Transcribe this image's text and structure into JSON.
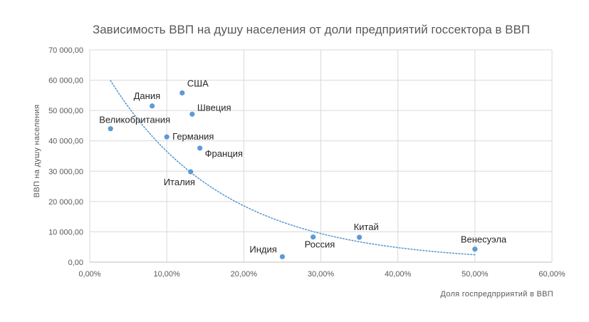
{
  "chart_data": {
    "type": "scatter",
    "title": "Зависимость ВВП на душу населения от доли предприятий госсектора в ВВП",
    "xlabel": "Доля госпредпрриятий в ВВП",
    "ylabel": "ВВП на душу населения",
    "xlim": [
      0,
      0.6
    ],
    "ylim": [
      0,
      70000
    ],
    "x_ticks": [
      "0,00%",
      "10,00%",
      "20,00%",
      "30,00%",
      "40,00%",
      "50,00%",
      "60,00%"
    ],
    "y_ticks": [
      "0,00",
      "10 000,00",
      "20 000,00",
      "30 000,00",
      "40 000,00",
      "50 000,00",
      "60 000,00",
      "70 000,00"
    ],
    "grid": true,
    "marker_color": "#5b9bd5",
    "trendline": {
      "type": "exponential",
      "style": "dotted",
      "color": "#5b9bd5"
    },
    "points": [
      {
        "label": "Великобритания",
        "x": 0.027,
        "y": 44000
      },
      {
        "label": "Дания",
        "x": 0.081,
        "y": 51500
      },
      {
        "label": "Германия",
        "x": 0.1,
        "y": 41300
      },
      {
        "label": "США",
        "x": 0.12,
        "y": 55800
      },
      {
        "label": "Италия",
        "x": 0.131,
        "y": 29800
      },
      {
        "label": "Швеция",
        "x": 0.133,
        "y": 48800
      },
      {
        "label": "Франция",
        "x": 0.143,
        "y": 37600
      },
      {
        "label": "Индия",
        "x": 0.25,
        "y": 1800
      },
      {
        "label": "Россия",
        "x": 0.29,
        "y": 8300
      },
      {
        "label": "Китай",
        "x": 0.35,
        "y": 8200
      },
      {
        "label": "Венесуэла",
        "x": 0.5,
        "y": 4300
      }
    ]
  }
}
